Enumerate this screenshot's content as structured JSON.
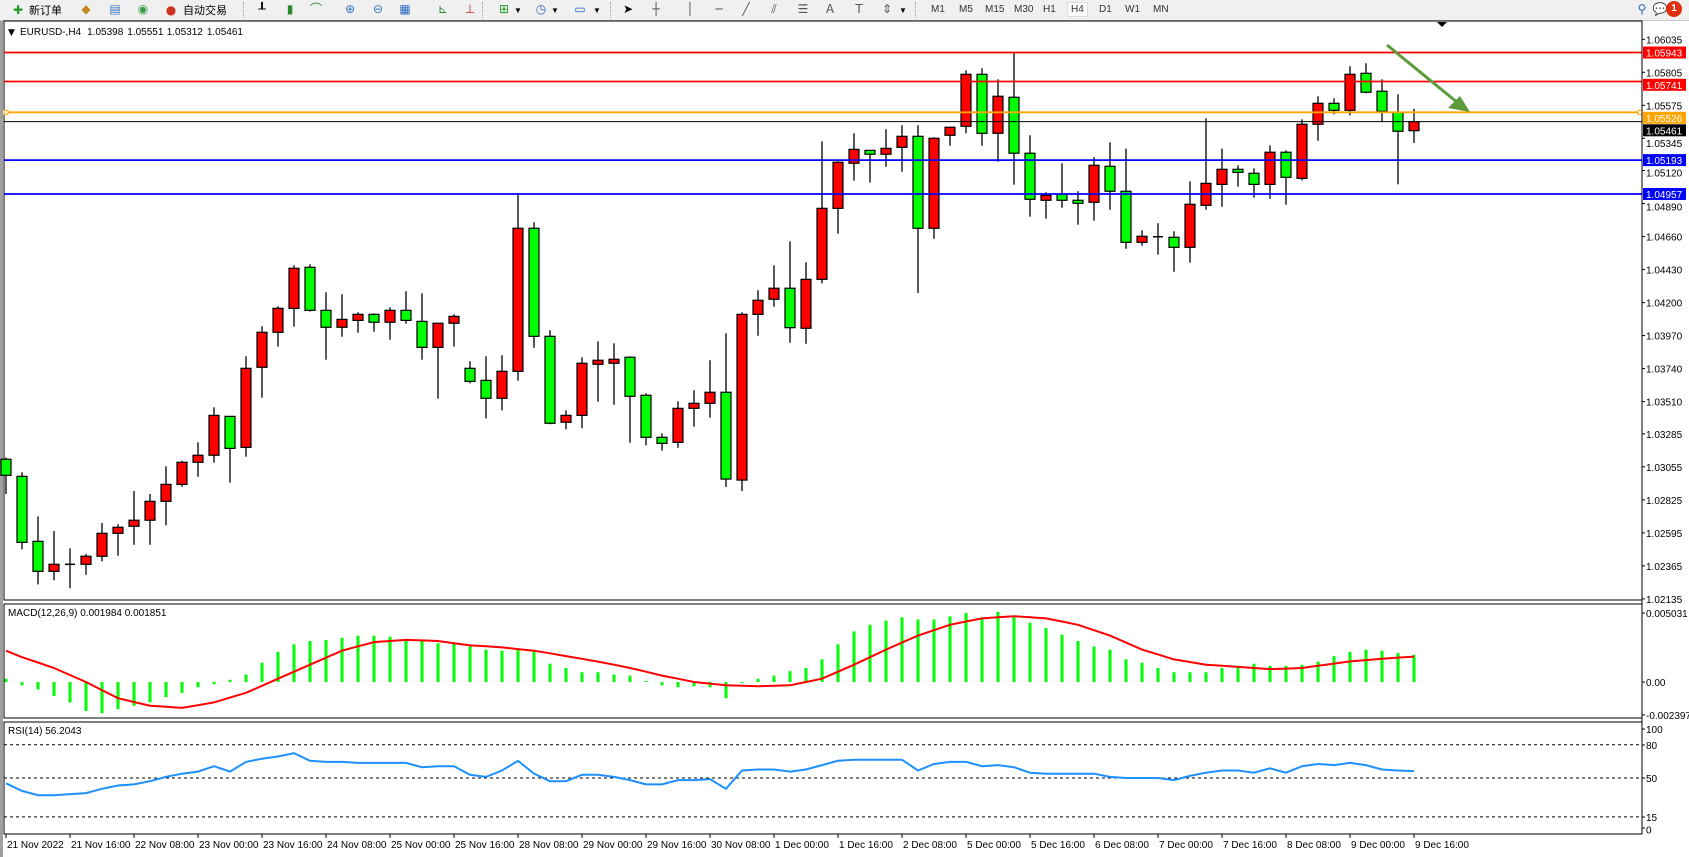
{
  "toolbar": {
    "new_order": "新订单",
    "auto_trading": "自动交易",
    "timeframes": [
      "M1",
      "M5",
      "M15",
      "M30",
      "H1",
      "H4",
      "D1",
      "W1",
      "MN"
    ],
    "active_timeframe": "H4",
    "notification_count": "1",
    "icons": [
      "new-order-icon",
      "market-watch-icon",
      "navigator-icon",
      "signals-icon",
      "auto-trading-icon",
      "bar-chart-icon",
      "candlestick-chart-icon",
      "line-chart-icon",
      "zoom-in-icon",
      "zoom-out-icon",
      "tile-windows-icon",
      "auto-scroll-icon",
      "chart-shift-icon",
      "indicators-icon",
      "periods-icon",
      "templates-icon",
      "cursor-icon",
      "crosshair-icon",
      "vertical-line-icon",
      "horizontal-line-icon",
      "trend-line-icon",
      "equidistant-channel-icon",
      "fibonacci-icon",
      "text-icon",
      "text-label-icon",
      "arrows-icon",
      "search-icon",
      "notification-icon"
    ]
  },
  "chart": {
    "symbol": "EURUSD-,H4",
    "open": "1.05398",
    "high": "1.05551",
    "low": "1.05312",
    "close": "1.05461",
    "up_color": "#ff0000",
    "down_color": "#00ff00",
    "price_lines": [
      {
        "label": "1.05943",
        "price": 1.05943,
        "color": "#ff0000"
      },
      {
        "label": "1.05741",
        "price": 1.05741,
        "color": "#ff0000"
      },
      {
        "label": "1.05526",
        "price": 1.05526,
        "color": "#ffa500"
      },
      {
        "label": "1.05461",
        "price": 1.05461,
        "color": "#000000"
      },
      {
        "label": "1.05193",
        "price": 1.05193,
        "color": "#0000ff"
      },
      {
        "label": "1.04957",
        "price": 1.04957,
        "color": "#0000ff"
      }
    ],
    "arrow_color": "#5b9b3a",
    "price_ticks": [
      "1.06035",
      "1.05805",
      "1.05575",
      "1.05345",
      "1.05120",
      "1.04890",
      "1.04660",
      "1.04430",
      "1.04200",
      "1.03970",
      "1.03740",
      "1.03510",
      "1.03285",
      "1.03055",
      "1.02825",
      "1.02595",
      "1.02365",
      "1.02135"
    ],
    "time_ticks": [
      "21 Nov 2022",
      "21 Nov 16:00",
      "22 Nov 08:00",
      "23 Nov 00:00",
      "23 Nov 16:00",
      "24 Nov 08:00",
      "25 Nov 00:00",
      "25 Nov 16:00",
      "28 Nov 08:00",
      "29 Nov 00:00",
      "29 Nov 16:00",
      "30 Nov 08:00",
      "1 Dec 00:00",
      "1 Dec 16:00",
      "2 Dec 08:00",
      "5 Dec 00:00",
      "5 Dec 16:00",
      "6 Dec 08:00",
      "7 Dec 00:00",
      "7 Dec 16:00",
      "8 Dec 08:00",
      "9 Dec 00:00",
      "9 Dec 16:00"
    ]
  },
  "macd": {
    "label": "MACD(12,26,9) 0.001984 0.001851",
    "axis_labels": [
      "0.005031",
      "0.00",
      "-0.002397"
    ],
    "histogram_color": "#00ff00",
    "signal_color": "#ff0000"
  },
  "rsi": {
    "label": "RSI(14) 56.2043",
    "axis_labels": [
      "100",
      "80",
      "50",
      "15",
      "0"
    ],
    "line_color": "#1e90ff"
  },
  "chart_data": [
    {
      "type": "candlestick",
      "title": "EURUSD-,H4",
      "timeframe": "H4",
      "ylim": [
        1.02135,
        1.06035
      ],
      "ohlc_fields": [
        "open",
        "high",
        "low",
        "close"
      ],
      "ohlc": [
        [
          1.03108,
          1.0312,
          1.02866,
          1.02996
        ],
        [
          1.02989,
          1.03017,
          1.0248,
          1.02529
        ],
        [
          1.02536,
          1.0271,
          1.02236,
          1.02327
        ],
        [
          1.02327,
          1.02608,
          1.02264,
          1.02376
        ],
        [
          1.02376,
          1.02487,
          1.02209,
          1.02376
        ],
        [
          1.02376,
          1.02448,
          1.02303,
          1.02432
        ],
        [
          1.02432,
          1.02664,
          1.02397,
          1.02592
        ],
        [
          1.02592,
          1.02655,
          1.02436,
          1.02634
        ],
        [
          1.02641,
          1.02887,
          1.02512,
          1.02683
        ],
        [
          1.02683,
          1.02866,
          1.02512,
          1.02815
        ],
        [
          1.02815,
          1.03059,
          1.02648,
          1.02933
        ],
        [
          1.02933,
          1.03098,
          1.02917,
          1.03087
        ],
        [
          1.03087,
          1.03226,
          1.02986,
          1.03136
        ],
        [
          1.03136,
          1.0347,
          1.03084,
          1.03414
        ],
        [
          1.03407,
          1.0341,
          1.02945,
          1.03184
        ],
        [
          1.03191,
          1.03826,
          1.03126,
          1.03742
        ],
        [
          1.03749,
          1.04035,
          1.03537,
          1.03993
        ],
        [
          1.03993,
          1.04174,
          1.03893,
          1.0416
        ],
        [
          1.0416,
          1.0446,
          1.04032,
          1.04439
        ],
        [
          1.04446,
          1.04467,
          1.04137,
          1.04146
        ],
        [
          1.04146,
          1.04272,
          1.03802,
          1.04028
        ],
        [
          1.04028,
          1.04258,
          1.03962,
          1.04083
        ],
        [
          1.04076,
          1.04132,
          1.0399,
          1.04118
        ],
        [
          1.04118,
          1.04125,
          1.03997,
          1.04063
        ],
        [
          1.04063,
          1.04167,
          1.03941,
          1.04146
        ],
        [
          1.04146,
          1.04279,
          1.04053,
          1.04076
        ],
        [
          1.04069,
          1.04265,
          1.03802,
          1.03888
        ],
        [
          1.03888,
          1.0406,
          1.0353,
          1.04056
        ],
        [
          1.04056,
          1.04118,
          1.03893,
          1.04104
        ],
        [
          1.03742,
          1.03791,
          1.03637,
          1.03651
        ],
        [
          1.03658,
          1.03826,
          1.03393,
          1.03533
        ],
        [
          1.03533,
          1.03833,
          1.03449,
          1.03721
        ],
        [
          1.03721,
          1.04957,
          1.03656,
          1.04718
        ],
        [
          1.04718,
          1.0476,
          1.03885,
          1.03965
        ],
        [
          1.03965,
          1.04007,
          1.03352,
          1.03359
        ],
        [
          1.03366,
          1.03449,
          1.03317,
          1.03414
        ],
        [
          1.03414,
          1.03819,
          1.03324,
          1.03777
        ],
        [
          1.0377,
          1.0393,
          1.03509,
          1.03798
        ],
        [
          1.03777,
          1.03916,
          1.03488,
          1.03805
        ],
        [
          1.03819,
          1.03826,
          1.03223,
          1.03547
        ],
        [
          1.03554,
          1.03568,
          1.03205,
          1.03261
        ],
        [
          1.03261,
          1.03289,
          1.03168,
          1.03219
        ],
        [
          1.03226,
          1.03512,
          1.03188,
          1.03463
        ],
        [
          1.03463,
          1.03589,
          1.03335,
          1.03498
        ],
        [
          1.03498,
          1.03798,
          1.03398,
          1.03575
        ],
        [
          1.03575,
          1.03986,
          1.02915,
          1.0297
        ],
        [
          1.02963,
          1.04132,
          1.02887,
          1.04118
        ],
        [
          1.04118,
          1.04286,
          1.03969,
          1.04216
        ],
        [
          1.04223,
          1.0446,
          1.04171,
          1.043
        ],
        [
          1.043,
          1.04627,
          1.0392,
          1.04025
        ],
        [
          1.04021,
          1.04481,
          1.03913,
          1.04362
        ],
        [
          1.04362,
          1.05324,
          1.04334,
          1.04857
        ],
        [
          1.04857,
          1.05185,
          1.0468,
          1.05178
        ],
        [
          1.05171,
          1.0538,
          1.0505,
          1.05268
        ],
        [
          1.05261,
          1.05261,
          1.05036,
          1.05234
        ],
        [
          1.05234,
          1.05408,
          1.05147,
          1.05275
        ],
        [
          1.05282,
          1.05436,
          1.05112,
          1.05359
        ],
        [
          1.05359,
          1.05436,
          1.04267,
          1.04718
        ],
        [
          1.04718,
          1.05352,
          1.04645,
          1.05345
        ],
        [
          1.05366,
          1.05422,
          1.05293,
          1.05422
        ],
        [
          1.05429,
          1.05819,
          1.0538,
          1.05791
        ],
        [
          1.05791,
          1.05833,
          1.05293,
          1.0538
        ],
        [
          1.0538,
          1.05756,
          1.05182,
          1.05638
        ],
        [
          1.05631,
          1.05943,
          1.05022,
          1.05241
        ],
        [
          1.05241,
          1.05366,
          1.04799,
          1.0492
        ],
        [
          1.04913,
          1.04969,
          1.04785,
          1.04948
        ],
        [
          1.04955,
          1.05171,
          1.04861,
          1.04913
        ],
        [
          1.04913,
          1.04976,
          1.04743,
          1.04892
        ],
        [
          1.04899,
          1.05213,
          1.04771,
          1.05157
        ],
        [
          1.0515,
          1.05317,
          1.04847,
          1.04976
        ],
        [
          1.04976,
          1.05273,
          1.04575,
          1.0462
        ],
        [
          1.0462,
          1.04704,
          1.04596,
          1.04662
        ],
        [
          1.04659,
          1.04753,
          1.04534,
          1.04659
        ],
        [
          1.04655,
          1.04697,
          1.04415,
          1.04585
        ],
        [
          1.04585,
          1.05045,
          1.04478,
          1.04885
        ],
        [
          1.04878,
          1.05484,
          1.04847,
          1.05031
        ],
        [
          1.05024,
          1.05273,
          1.04868,
          1.05129
        ],
        [
          1.05129,
          1.05157,
          1.05008,
          1.05108
        ],
        [
          1.05101,
          1.05136,
          1.04931,
          1.05024
        ],
        [
          1.05024,
          1.05296,
          1.04924,
          1.05248
        ],
        [
          1.05248,
          1.05261,
          1.04882,
          1.05073
        ],
        [
          1.05066,
          1.05477,
          1.05052,
          1.05443
        ],
        [
          1.05443,
          1.05638,
          1.05328,
          1.05589
        ],
        [
          1.05589,
          1.05624,
          1.05512,
          1.0554
        ],
        [
          1.0554,
          1.05847,
          1.05505,
          1.05791
        ],
        [
          1.05798,
          1.05868,
          1.05659,
          1.05666
        ],
        [
          1.05673,
          1.05756,
          1.05457,
          1.05533
        ],
        [
          1.05526,
          1.05652,
          1.05024,
          1.05394
        ],
        [
          1.05398,
          1.05551,
          1.05312,
          1.05461
        ]
      ]
    },
    {
      "type": "bar",
      "title": "MACD(12,26,9)",
      "ylim": [
        -0.002397,
        0.005031
      ],
      "series": [
        {
          "name": "MACD",
          "type": "bar",
          "values": [
            0.00024,
            -0.00024,
            -0.00055,
            -0.00102,
            -0.00149,
            -0.00212,
            -0.00228,
            -0.00197,
            -0.00173,
            -0.00149,
            -0.0011,
            -0.00079,
            -0.00039,
            -0.00016,
            0.00016,
            0.00055,
            0.00141,
            0.0022,
            0.00275,
            0.00299,
            0.00307,
            0.00322,
            0.00338,
            0.00338,
            0.0033,
            0.00314,
            0.00299,
            0.00283,
            0.00283,
            0.00259,
            0.00236,
            0.00228,
            0.00236,
            0.00228,
            0.00134,
            0.00102,
            0.00071,
            0.00071,
            0.00055,
            0.00047,
            8e-05,
            -0.00024,
            -0.00039,
            -0.00031,
            -0.00039,
            -0.00118,
            -8e-05,
            0.00024,
            0.00047,
            0.00079,
            0.00102,
            0.00165,
            0.00275,
            0.00369,
            0.00417,
            0.00448,
            0.00472,
            0.00456,
            0.00456,
            0.00479,
            0.00503,
            0.00472,
            0.00511,
            0.00472,
            0.00432,
            0.00393,
            0.00346,
            0.00299,
            0.00259,
            0.00236,
            0.00165,
            0.00141,
            0.00102,
            0.00071,
            0.00071,
            0.00071,
            0.00102,
            0.00118,
            0.00134,
            0.00118,
            0.00118,
            0.00126,
            0.00149,
            0.00189,
            0.0022,
            0.00236,
            0.00228,
            0.00212,
            0.001984
          ]
        },
        {
          "name": "Signal",
          "type": "line",
          "values": [
            0.00228,
            0.00181,
            0.00142,
            0.00102,
            0.00051,
            0,
            -0.00059,
            -0.00118,
            -0.00146,
            -0.00173,
            -0.00181,
            -0.00189,
            -0.00169,
            -0.00149,
            -0.00114,
            -0.00079,
            -0.00028,
            0.00024,
            0.00075,
            0.00126,
            0.00177,
            0.00228,
            0.0026,
            0.00291,
            0.00299,
            0.00307,
            0.00303,
            0.00299,
            0.00283,
            0.00267,
            0.0026,
            0.00252,
            0.0024,
            0.00228,
            0.00209,
            0.00189,
            0.00169,
            0.00149,
            0.00126,
            0.00102,
            0.00075,
            0.00047,
            0.00024,
            0,
            -0.00012,
            -0.00024,
            -0.00028,
            -0.00031,
            -0.00028,
            -0.00024,
            0,
            0.00024,
            0.00075,
            0.00126,
            0.00181,
            0.00236,
            0.00287,
            0.00338,
            0.00378,
            0.00417,
            0.00441,
            0.00464,
            0.00472,
            0.00479,
            0.00472,
            0.00464,
            0.00441,
            0.00417,
            0.00378,
            0.00338,
            0.00287,
            0.00236,
            0.00201,
            0.00165,
            0.00146,
            0.00126,
            0.00118,
            0.0011,
            0.00102,
            0.00094,
            0.00098,
            0.00102,
            0.00118,
            0.00134,
            0.0015,
            0.0016,
            0.0017,
            0.00178,
            0.001851
          ]
        }
      ]
    },
    {
      "type": "line",
      "title": "RSI(14)",
      "ylim": [
        0,
        100
      ],
      "levels": [
        80,
        50,
        15
      ],
      "series": [
        {
          "name": "RSI(14)",
          "values": [
            45.2,
            38.4,
            34.5,
            34.5,
            35.5,
            36.4,
            40.3,
            43.2,
            44.2,
            47.1,
            51.0,
            53.9,
            55.8,
            60.6,
            55.8,
            64.5,
            67.4,
            69.4,
            72.3,
            65.5,
            64.5,
            64.5,
            63.6,
            63.6,
            63.6,
            63.6,
            59.7,
            60.6,
            60.6,
            52.9,
            51.0,
            56.8,
            65.5,
            53.9,
            47.1,
            47.1,
            52.9,
            52.9,
            51.0,
            48.1,
            44.2,
            44.2,
            48.1,
            48.1,
            49.0,
            40.3,
            56.8,
            57.7,
            57.7,
            55.8,
            57.7,
            61.6,
            65.5,
            66.5,
            66.5,
            66.5,
            66.5,
            56.8,
            62.6,
            64.5,
            64.5,
            60.6,
            61.6,
            59.7,
            54.8,
            53.9,
            53.9,
            53.9,
            53.9,
            51.0,
            50.0,
            50.0,
            50.0,
            48.1,
            51.9,
            54.8,
            56.8,
            56.8,
            54.8,
            58.7,
            54.8,
            60.6,
            62.6,
            61.6,
            63.6,
            61.6,
            57.7,
            56.8,
            56.2043
          ]
        }
      ]
    }
  ]
}
